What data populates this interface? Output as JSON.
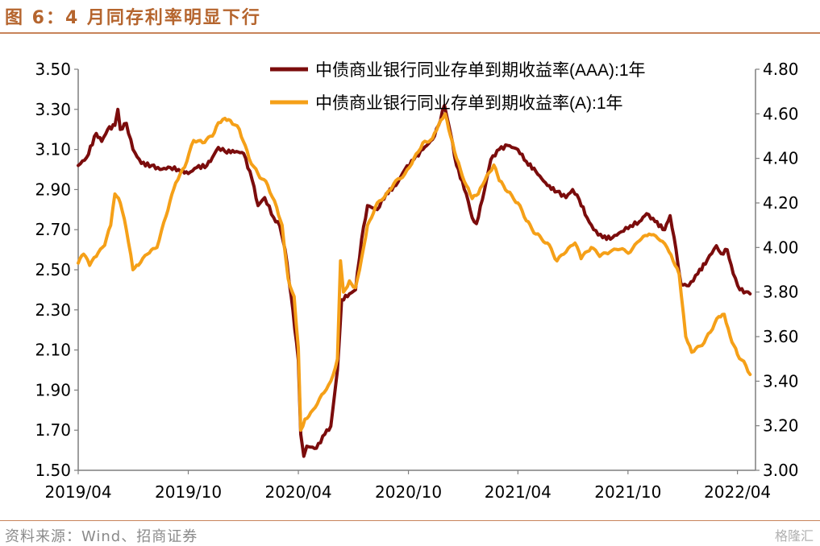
{
  "title": "图 6：4 月同存利率明显下行",
  "source": "资料来源：Wind、招商证券",
  "watermark": "格隆汇",
  "chart_data": {
    "type": "line",
    "xlabel": "",
    "ylabel": "",
    "ylim_left": [
      1.5,
      3.5
    ],
    "ylim_right": [
      3.0,
      4.8
    ],
    "yticks_left": [
      "3.50",
      "3.30",
      "3.10",
      "2.90",
      "2.70",
      "2.50",
      "2.30",
      "2.10",
      "1.90",
      "1.70",
      "1.50"
    ],
    "yticks_right": [
      "4.80",
      "4.60",
      "4.40",
      "4.20",
      "4.00",
      "3.80",
      "3.60",
      "3.40",
      "3.20",
      "3.00"
    ],
    "xticks": [
      "2019/04",
      "2019/10",
      "2020/04",
      "2020/10",
      "2021/04",
      "2021/10",
      "2022/04"
    ],
    "xlim": [
      "2019-04-01",
      "2022-05-01"
    ],
    "legend_position": "top-center",
    "grid": false,
    "series": [
      {
        "name": "中债商业银行同业存单到期收益率(AAA):1年",
        "axis": "left",
        "color": "#7b0c0c",
        "points": [
          [
            "2019-04-01",
            3.02
          ],
          [
            "2019-04-15",
            3.06
          ],
          [
            "2019-05-01",
            3.18
          ],
          [
            "2019-05-10",
            3.14
          ],
          [
            "2019-05-20",
            3.2
          ],
          [
            "2019-06-01",
            3.22
          ],
          [
            "2019-06-06",
            3.3
          ],
          [
            "2019-06-10",
            3.2
          ],
          [
            "2019-06-20",
            3.23
          ],
          [
            "2019-07-01",
            3.1
          ],
          [
            "2019-07-15",
            3.03
          ],
          [
            "2019-08-01",
            3.02
          ],
          [
            "2019-08-15",
            3.0
          ],
          [
            "2019-09-01",
            3.01
          ],
          [
            "2019-09-15",
            3.0
          ],
          [
            "2019-10-01",
            2.98
          ],
          [
            "2019-10-15",
            3.01
          ],
          [
            "2019-11-01",
            3.02
          ],
          [
            "2019-11-10",
            3.06
          ],
          [
            "2019-11-20",
            3.11
          ],
          [
            "2019-12-01",
            3.09
          ],
          [
            "2019-12-20",
            3.09
          ],
          [
            "2020-01-01",
            3.08
          ],
          [
            "2020-01-15",
            2.95
          ],
          [
            "2020-01-25",
            2.82
          ],
          [
            "2020-02-05",
            2.86
          ],
          [
            "2020-02-20",
            2.76
          ],
          [
            "2020-03-01",
            2.72
          ],
          [
            "2020-03-10",
            2.6
          ],
          [
            "2020-03-20",
            2.37
          ],
          [
            "2020-04-01",
            2.05
          ],
          [
            "2020-04-05",
            1.68
          ],
          [
            "2020-04-10",
            1.57
          ],
          [
            "2020-04-15",
            1.62
          ],
          [
            "2020-05-01",
            1.61
          ],
          [
            "2020-05-15",
            1.68
          ],
          [
            "2020-05-25",
            1.72
          ],
          [
            "2020-06-05",
            2.0
          ],
          [
            "2020-06-12",
            2.35
          ],
          [
            "2020-06-25",
            2.38
          ],
          [
            "2020-07-05",
            2.4
          ],
          [
            "2020-07-15",
            2.65
          ],
          [
            "2020-07-25",
            2.82
          ],
          [
            "2020-08-10",
            2.8
          ],
          [
            "2020-08-25",
            2.88
          ],
          [
            "2020-09-10",
            2.92
          ],
          [
            "2020-09-25",
            3.0
          ],
          [
            "2020-10-10",
            3.05
          ],
          [
            "2020-10-25",
            3.1
          ],
          [
            "2020-11-10",
            3.15
          ],
          [
            "2020-11-20",
            3.22
          ],
          [
            "2020-11-30",
            3.32
          ],
          [
            "2020-12-10",
            3.18
          ],
          [
            "2020-12-20",
            3.02
          ],
          [
            "2021-01-05",
            2.88
          ],
          [
            "2021-01-15",
            2.76
          ],
          [
            "2021-01-22",
            2.73
          ],
          [
            "2021-02-01",
            2.85
          ],
          [
            "2021-02-15",
            3.05
          ],
          [
            "2021-03-01",
            3.1
          ],
          [
            "2021-03-15",
            3.12
          ],
          [
            "2021-04-01",
            3.1
          ],
          [
            "2021-04-15",
            3.04
          ],
          [
            "2021-05-01",
            2.99
          ],
          [
            "2021-05-20",
            2.92
          ],
          [
            "2021-06-05",
            2.89
          ],
          [
            "2021-06-20",
            2.86
          ],
          [
            "2021-07-01",
            2.9
          ],
          [
            "2021-07-12",
            2.85
          ],
          [
            "2021-07-25",
            2.76
          ],
          [
            "2021-08-05",
            2.7
          ],
          [
            "2021-08-20",
            2.66
          ],
          [
            "2021-09-05",
            2.66
          ],
          [
            "2021-09-20",
            2.69
          ],
          [
            "2021-10-05",
            2.72
          ],
          [
            "2021-10-20",
            2.74
          ],
          [
            "2021-11-01",
            2.78
          ],
          [
            "2021-11-15",
            2.74
          ],
          [
            "2021-12-01",
            2.7
          ],
          [
            "2021-12-10",
            2.77
          ],
          [
            "2021-12-20",
            2.6
          ],
          [
            "2021-12-28",
            2.43
          ],
          [
            "2022-01-10",
            2.42
          ],
          [
            "2022-01-25",
            2.48
          ],
          [
            "2022-02-10",
            2.55
          ],
          [
            "2022-02-25",
            2.62
          ],
          [
            "2022-03-05",
            2.58
          ],
          [
            "2022-03-15",
            2.6
          ],
          [
            "2022-03-25",
            2.48
          ],
          [
            "2022-04-05",
            2.4
          ],
          [
            "2022-04-15",
            2.39
          ],
          [
            "2022-04-22",
            2.38
          ]
        ]
      },
      {
        "name": "中债商业银行同业存单到期收益率(A):1年",
        "axis": "right",
        "color": "#f5a018",
        "points": [
          [
            "2019-04-01",
            3.93
          ],
          [
            "2019-04-10",
            3.97
          ],
          [
            "2019-04-20",
            3.92
          ],
          [
            "2019-05-01",
            3.96
          ],
          [
            "2019-05-15",
            4.01
          ],
          [
            "2019-05-25",
            4.1
          ],
          [
            "2019-06-01",
            4.24
          ],
          [
            "2019-06-10",
            4.2
          ],
          [
            "2019-06-20",
            4.08
          ],
          [
            "2019-07-01",
            3.9
          ],
          [
            "2019-07-10",
            3.92
          ],
          [
            "2019-07-25",
            3.97
          ],
          [
            "2019-08-10",
            4.0
          ],
          [
            "2019-08-25",
            4.14
          ],
          [
            "2019-09-10",
            4.29
          ],
          [
            "2019-09-25",
            4.36
          ],
          [
            "2019-10-10",
            4.48
          ],
          [
            "2019-10-25",
            4.47
          ],
          [
            "2019-11-10",
            4.5
          ],
          [
            "2019-11-20",
            4.56
          ],
          [
            "2019-12-01",
            4.58
          ],
          [
            "2019-12-10",
            4.57
          ],
          [
            "2019-12-25",
            4.53
          ],
          [
            "2020-01-10",
            4.4
          ],
          [
            "2020-01-25",
            4.33
          ],
          [
            "2020-02-10",
            4.28
          ],
          [
            "2020-02-25",
            4.18
          ],
          [
            "2020-03-05",
            4.1
          ],
          [
            "2020-03-15",
            3.86
          ],
          [
            "2020-03-25",
            3.78
          ],
          [
            "2020-04-01",
            3.55
          ],
          [
            "2020-04-05",
            3.18
          ],
          [
            "2020-04-12",
            3.23
          ],
          [
            "2020-04-25",
            3.27
          ],
          [
            "2020-05-10",
            3.34
          ],
          [
            "2020-05-25",
            3.4
          ],
          [
            "2020-06-05",
            3.5
          ],
          [
            "2020-06-10",
            3.94
          ],
          [
            "2020-06-15",
            3.8
          ],
          [
            "2020-06-25",
            3.85
          ],
          [
            "2020-07-05",
            3.82
          ],
          [
            "2020-07-15",
            3.95
          ],
          [
            "2020-07-25",
            4.1
          ],
          [
            "2020-08-10",
            4.2
          ],
          [
            "2020-08-25",
            4.24
          ],
          [
            "2020-09-10",
            4.3
          ],
          [
            "2020-09-25",
            4.33
          ],
          [
            "2020-10-10",
            4.4
          ],
          [
            "2020-10-25",
            4.47
          ],
          [
            "2020-11-10",
            4.49
          ],
          [
            "2020-11-20",
            4.55
          ],
          [
            "2020-12-01",
            4.6
          ],
          [
            "2020-12-10",
            4.5
          ],
          [
            "2020-12-20",
            4.4
          ],
          [
            "2021-01-05",
            4.28
          ],
          [
            "2021-01-15",
            4.22
          ],
          [
            "2021-01-25",
            4.24
          ],
          [
            "2021-02-05",
            4.3
          ],
          [
            "2021-02-20",
            4.37
          ],
          [
            "2021-03-01",
            4.3
          ],
          [
            "2021-03-15",
            4.25
          ],
          [
            "2021-04-01",
            4.2
          ],
          [
            "2021-04-15",
            4.12
          ],
          [
            "2021-05-01",
            4.06
          ],
          [
            "2021-05-20",
            4.02
          ],
          [
            "2021-06-05",
            3.94
          ],
          [
            "2021-06-20",
            3.98
          ],
          [
            "2021-07-05",
            4.02
          ],
          [
            "2021-07-15",
            3.95
          ],
          [
            "2021-08-01",
            4.0
          ],
          [
            "2021-08-15",
            3.96
          ],
          [
            "2021-09-01",
            3.98
          ],
          [
            "2021-09-15",
            3.99
          ],
          [
            "2021-10-05",
            3.98
          ],
          [
            "2021-10-20",
            4.03
          ],
          [
            "2021-11-05",
            4.06
          ],
          [
            "2021-11-20",
            4.04
          ],
          [
            "2021-12-05",
            4.0
          ],
          [
            "2021-12-15",
            3.94
          ],
          [
            "2021-12-25",
            3.88
          ],
          [
            "2022-01-05",
            3.6
          ],
          [
            "2022-01-15",
            3.53
          ],
          [
            "2022-02-01",
            3.56
          ],
          [
            "2022-02-15",
            3.62
          ],
          [
            "2022-03-01",
            3.69
          ],
          [
            "2022-03-10",
            3.7
          ],
          [
            "2022-03-20",
            3.6
          ],
          [
            "2022-04-01",
            3.52
          ],
          [
            "2022-04-15",
            3.47
          ],
          [
            "2022-04-22",
            3.43
          ]
        ]
      }
    ]
  }
}
